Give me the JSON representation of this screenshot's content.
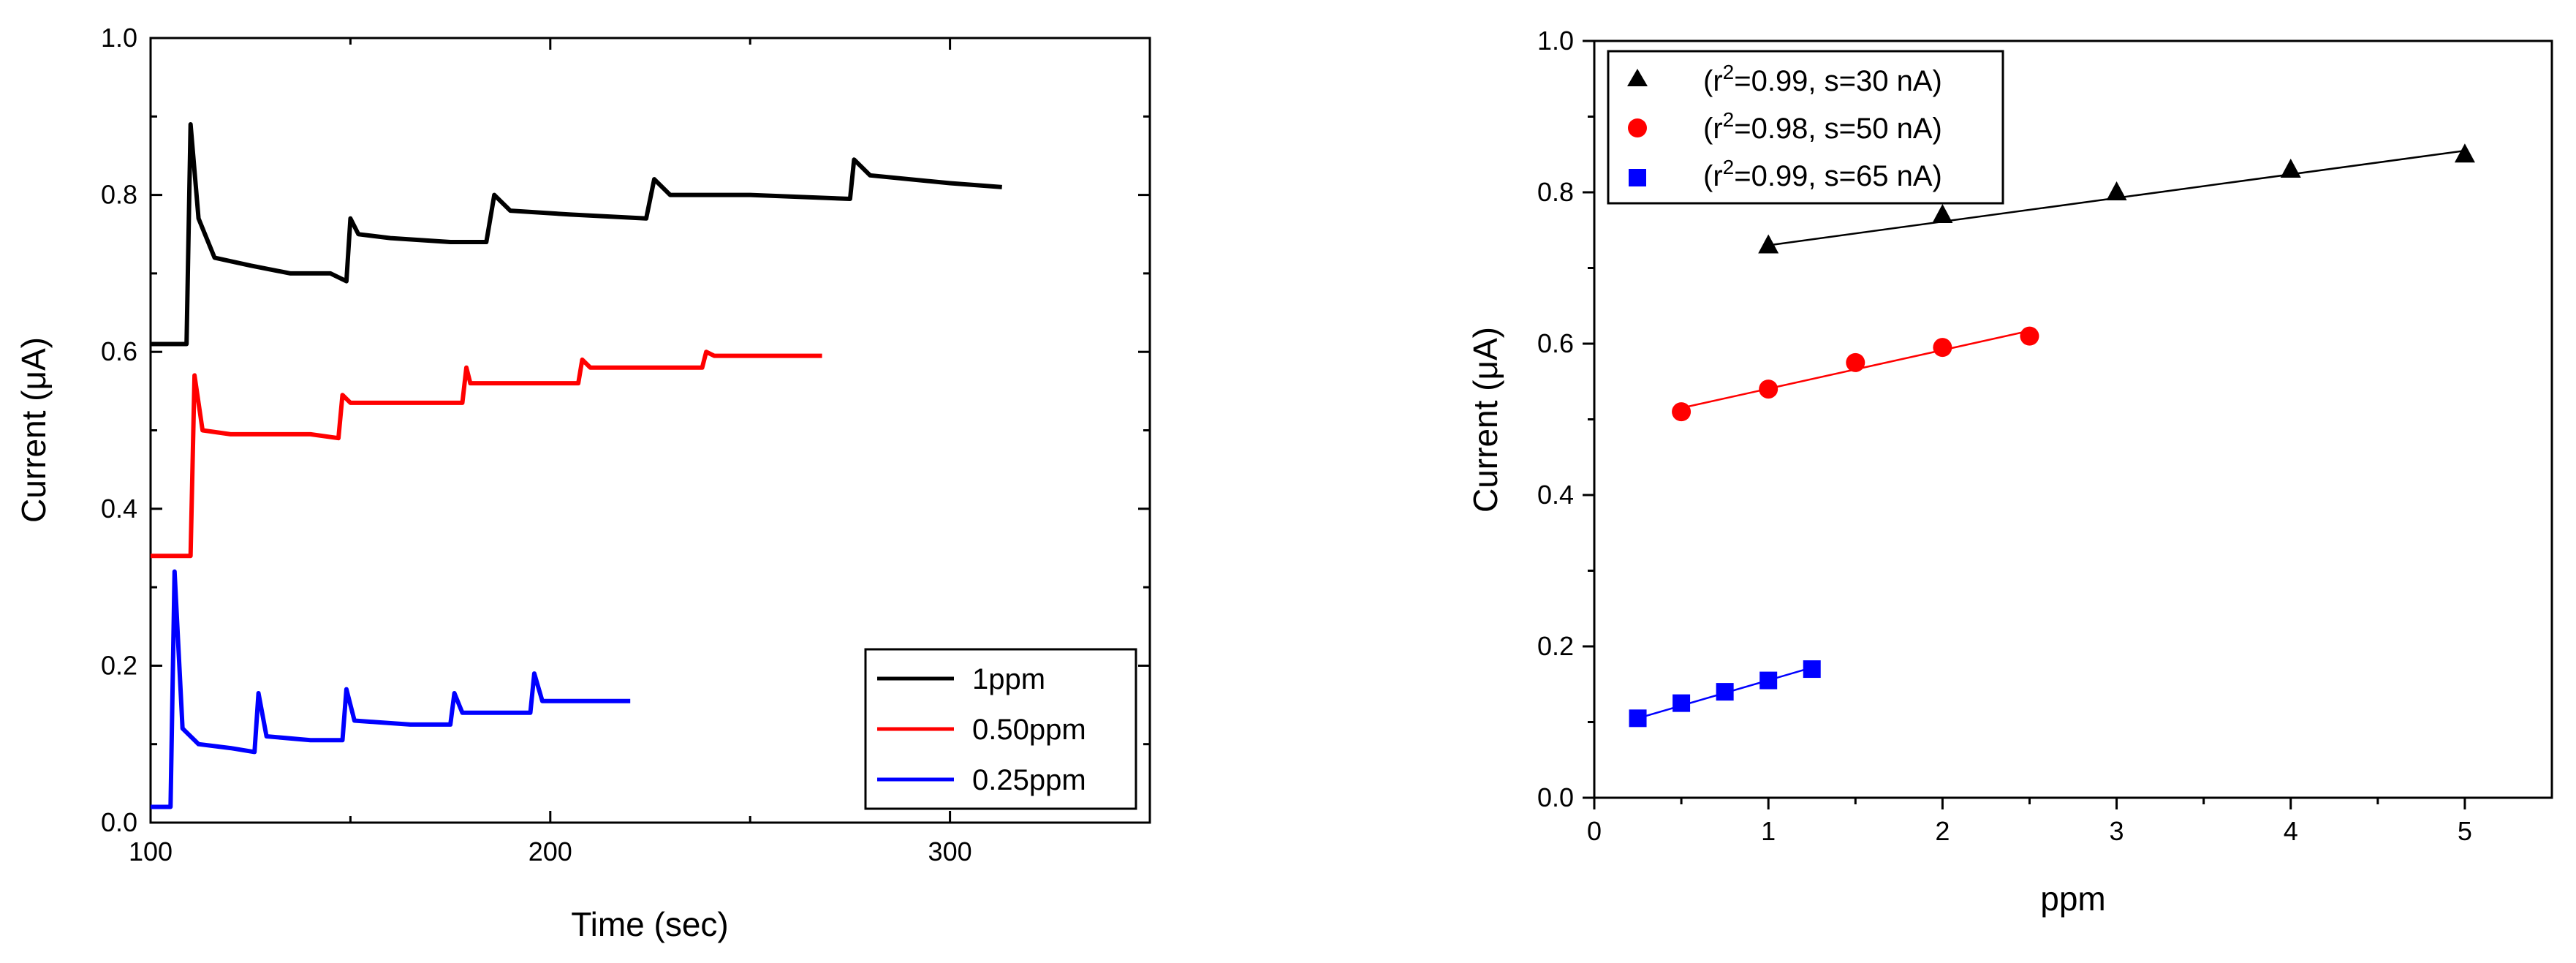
{
  "chart_data": [
    {
      "type": "line",
      "title": "",
      "xlabel": "Time (sec)",
      "ylabel": "Current (μA)",
      "xlim": [
        100,
        350
      ],
      "ylim": [
        0.0,
        1.0
      ],
      "xticks": [
        100,
        200,
        300
      ],
      "yticks": [
        0.0,
        0.2,
        0.4,
        0.6,
        0.8,
        1.0
      ],
      "ytick_labels": [
        "0.0",
        "0.2",
        "0.4",
        "0.6",
        "0.8",
        "1.0"
      ],
      "legend": "bottom-right",
      "series": [
        {
          "name": "1ppm",
          "color": "#000000",
          "x": [
            100,
            109,
            110,
            112,
            116,
            125,
            135,
            145,
            149,
            150,
            152,
            160,
            175,
            184,
            186,
            190,
            205,
            224,
            226,
            230,
            250,
            275,
            276,
            280,
            300,
            313
          ],
          "y": [
            0.61,
            0.61,
            0.89,
            0.77,
            0.72,
            0.71,
            0.7,
            0.7,
            0.69,
            0.77,
            0.75,
            0.745,
            0.74,
            0.74,
            0.8,
            0.78,
            0.775,
            0.77,
            0.82,
            0.8,
            0.8,
            0.795,
            0.845,
            0.825,
            0.815,
            0.81
          ]
        },
        {
          "name": "0.50ppm",
          "color": "#ff0000",
          "x": [
            100,
            110,
            111,
            113,
            120,
            140,
            147,
            148,
            150,
            160,
            178,
            179,
            180,
            190,
            207,
            208,
            210,
            225,
            238,
            239,
            241,
            250,
            268
          ],
          "y": [
            0.34,
            0.34,
            0.57,
            0.5,
            0.495,
            0.495,
            0.49,
            0.545,
            0.535,
            0.535,
            0.535,
            0.58,
            0.56,
            0.56,
            0.56,
            0.59,
            0.58,
            0.58,
            0.58,
            0.6,
            0.595,
            0.595,
            0.595
          ]
        },
        {
          "name": "0.25ppm",
          "color": "#0000ff",
          "x": [
            100,
            105,
            106,
            108,
            112,
            120,
            126,
            127,
            129,
            140,
            148,
            149,
            151,
            165,
            175,
            176,
            178,
            190,
            195,
            196,
            198,
            210,
            220
          ],
          "y": [
            0.02,
            0.02,
            0.32,
            0.12,
            0.1,
            0.095,
            0.09,
            0.165,
            0.11,
            0.105,
            0.105,
            0.17,
            0.13,
            0.125,
            0.125,
            0.165,
            0.14,
            0.14,
            0.14,
            0.19,
            0.155,
            0.155,
            0.155
          ]
        }
      ]
    },
    {
      "type": "scatter",
      "title": "",
      "xlabel": "ppm",
      "ylabel": "Current (μA)",
      "xlim": [
        0,
        5.5
      ],
      "ylim": [
        0.0,
        1.0
      ],
      "xticks": [
        0,
        1,
        2,
        3,
        4,
        5
      ],
      "yticks": [
        0.0,
        0.2,
        0.4,
        0.6,
        0.8,
        1.0
      ],
      "ytick_labels": [
        "0.0",
        "0.2",
        "0.4",
        "0.6",
        "0.8",
        "1.0"
      ],
      "legend": "top-left",
      "series": [
        {
          "name": "(r²=0.99, s=30 nA)",
          "r2_label": "(r",
          "r2_sup": "2",
          "r2_rest": "=0.99, s=30 nA)",
          "marker": "triangle",
          "color": "#000000",
          "x": [
            1,
            2,
            3,
            4,
            5
          ],
          "y": [
            0.73,
            0.77,
            0.8,
            0.83,
            0.85
          ],
          "fit": [
            [
              1,
              0.73
            ],
            [
              5,
              0.855
            ]
          ]
        },
        {
          "name": "(r²=0.98, s=50 nA)",
          "r2_label": "(r",
          "r2_sup": "2",
          "r2_rest": "=0.98, s=50 nA)",
          "marker": "circle",
          "color": "#ff0000",
          "x": [
            0.5,
            1.0,
            1.5,
            2.0,
            2.5
          ],
          "y": [
            0.51,
            0.54,
            0.575,
            0.595,
            0.61
          ],
          "fit": [
            [
              0.5,
              0.515
            ],
            [
              2.5,
              0.617
            ]
          ]
        },
        {
          "name": "(r²=0.99, s=65 nA)",
          "r2_label": "(r",
          "r2_sup": "2",
          "r2_rest": "=0.99, s=65 nA)",
          "marker": "square",
          "color": "#0000ff",
          "x": [
            0.25,
            0.5,
            0.75,
            1.0,
            1.25
          ],
          "y": [
            0.105,
            0.125,
            0.14,
            0.155,
            0.17
          ],
          "fit": [
            [
              0.25,
              0.105
            ],
            [
              1.25,
              0.172
            ]
          ]
        }
      ]
    }
  ]
}
